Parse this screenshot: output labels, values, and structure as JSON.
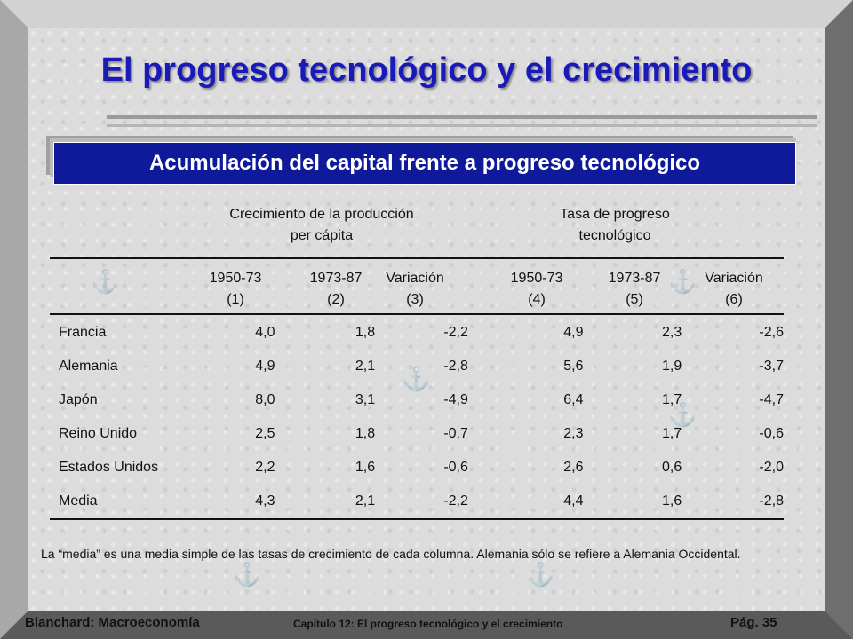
{
  "title": "El progreso tecnológico y el crecimiento",
  "subtitle": "Acumulación del capital frente a progreso tecnológico",
  "groups": {
    "output": [
      "Crecimiento de la producción",
      "per cápita"
    ],
    "tech": [
      "Tasa de progreso",
      "tecnológico"
    ]
  },
  "columns": [
    {
      "label": "1950-73",
      "num": "(1)"
    },
    {
      "label": "1973-87",
      "num": "(2)"
    },
    {
      "label": "Variación",
      "num": "(3)"
    },
    {
      "label": "1950-73",
      "num": "(4)"
    },
    {
      "label": "1973-87",
      "num": "(5)"
    },
    {
      "label": "Variación",
      "num": "(6)"
    }
  ],
  "rows": [
    {
      "country": "Francia",
      "v": [
        "4,0",
        "1,8",
        "-2,2",
        "4,9",
        "2,3",
        "-2,6"
      ]
    },
    {
      "country": "Alemania",
      "v": [
        "4,9",
        "2,1",
        "-2,8",
        "5,6",
        "1,9",
        "-3,7"
      ]
    },
    {
      "country": "Japón",
      "v": [
        "8,0",
        "3,1",
        "-4,9",
        "6,4",
        "1,7",
        "-4,7"
      ]
    },
    {
      "country": "Reino Unido",
      "v": [
        "2,5",
        "1,8",
        "-0,7",
        "2,3",
        "1,7",
        "-0,6"
      ]
    },
    {
      "country": "Estados Unidos",
      "v": [
        "2,2",
        "1,6",
        "-0,6",
        "2,6",
        "0,6",
        "-2,0"
      ]
    },
    {
      "country": "Media",
      "v": [
        "4,3",
        "2,1",
        "-2,2",
        "4,4",
        "1,6",
        "-2,8"
      ]
    }
  ],
  "note": "La “media” es una media simple de las tasas de crecimiento de cada columna. Alemania sólo se refiere a Alemania Occidental.",
  "footer": {
    "left": "Blanchard: Macroeconomía",
    "center": "Capítulo 12: El progreso tecnológico y el crecimiento",
    "page": "Pág. 35"
  },
  "colors": {
    "title": "#1a1ab8",
    "banner": "#0f1a9b",
    "slide_bg": "#dcdcdc",
    "frame": "#8c8c8c"
  }
}
